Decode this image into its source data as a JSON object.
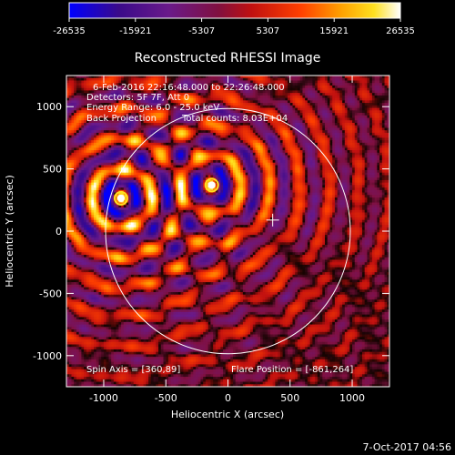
{
  "chart_data": {
    "type": "heatmap",
    "title": "Reconstructed RHESSI Image",
    "xlabel": "Heliocentric X (arcsec)",
    "ylabel": "Heliocentric Y (arcsec)",
    "xlim": [
      -1300,
      1300
    ],
    "ylim": [
      -1250,
      1250
    ],
    "xticks": [
      -1000,
      -500,
      0,
      500,
      1000
    ],
    "yticks": [
      -1000,
      -500,
      0,
      500,
      1000
    ],
    "colorbar": {
      "min": -26535,
      "max": 26535,
      "ticks": [
        -26535,
        -15921,
        -5307,
        5307,
        15921,
        26535
      ],
      "colors": [
        "#0000ff",
        "#3a0a8a",
        "#6a1a8a",
        "#a01040",
        "#d01010",
        "#ff4000",
        "#ffa000",
        "#ffe020",
        "#ffffff"
      ]
    },
    "annotations": [
      "6-Feb-2016 22:16:48.000 to 22:26:48.000",
      "Detectors: 5F 7F, Att 0",
      "Energy Range: 6.0 - 25.0 keV",
      "Back Projection",
      "Total counts: 8.03E+04"
    ],
    "spin_axis_label": "Spin Axis = [360,89]",
    "flare_position_label": "Flare Position = [-861,264]",
    "sources": [
      {
        "x": -861,
        "y": 264,
        "peak": 26535
      },
      {
        "x": -130,
        "y": 370,
        "peak": 21000
      }
    ],
    "spin_axis": {
      "x": 360,
      "y": 89
    },
    "solar_limb_radius": 985,
    "timestamp": "7-Oct-2017 04:56"
  }
}
